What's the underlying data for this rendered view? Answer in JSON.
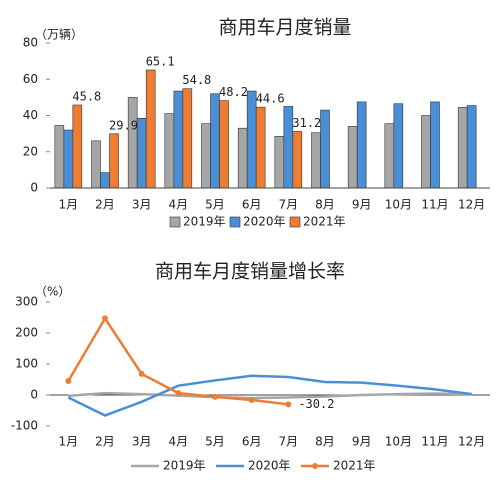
{
  "chart_data": [
    {
      "type": "bar",
      "title": "商用车月度销量",
      "unit": "（万辆）",
      "categories": [
        "1月",
        "2月",
        "3月",
        "4月",
        "5月",
        "6月",
        "7月",
        "8月",
        "9月",
        "10月",
        "11月",
        "12月"
      ],
      "ylim": [
        0,
        80
      ],
      "yticks": [
        0,
        20,
        40,
        60,
        80
      ],
      "series": [
        {
          "name": "2019年",
          "color": "#a6a6a6",
          "values": [
            34.5,
            26,
            50,
            41,
            35.5,
            33,
            28.5,
            30.5,
            34,
            35.5,
            40,
            44.5
          ]
        },
        {
          "name": "2020年",
          "color": "#4a8fd6",
          "values": [
            32,
            8.5,
            38.5,
            53.5,
            52,
            53.5,
            45,
            43,
            47.5,
            46.5,
            47.5,
            45.5
          ]
        },
        {
          "name": "2021年",
          "color": "#ee7d31",
          "values": [
            45.8,
            29.9,
            65.1,
            54.8,
            48.2,
            44.6,
            31.2,
            null,
            null,
            null,
            null,
            null
          ],
          "value_labels": [
            "45.8",
            "29.9",
            "65.1",
            "54.8",
            "48.2",
            "44.6",
            "31.2",
            null,
            null,
            null,
            null,
            null
          ]
        }
      ]
    },
    {
      "type": "line",
      "title": "商用车月度销量增长率",
      "unit": "（%）",
      "categories": [
        "1月",
        "2月",
        "3月",
        "4月",
        "5月",
        "6月",
        "7月",
        "8月",
        "9月",
        "10月",
        "11月",
        "12月"
      ],
      "ylim": [
        -100,
        300
      ],
      "yticks": [
        -100,
        0,
        100,
        200,
        300
      ],
      "series": [
        {
          "name": "2019年",
          "color": "#a6a6a6",
          "values": [
            -3,
            6,
            3,
            -2,
            -7,
            -10,
            -8,
            -5,
            0,
            3,
            5,
            3
          ]
        },
        {
          "name": "2020年",
          "color": "#4a8fd6",
          "values": [
            -8,
            -66,
            -22,
            30,
            47,
            62,
            58,
            42,
            40,
            30,
            18,
            3
          ]
        },
        {
          "name": "2021年",
          "color": "#ee7d31",
          "values": [
            45,
            247,
            68,
            6,
            -6,
            -16,
            -30.2,
            null,
            null,
            null,
            null,
            null
          ],
          "value_labels": [
            null,
            null,
            null,
            null,
            null,
            null,
            "-30.2",
            null,
            null,
            null,
            null,
            null
          ]
        }
      ]
    }
  ]
}
